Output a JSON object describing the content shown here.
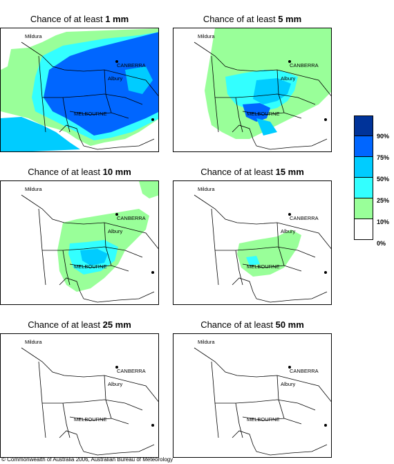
{
  "title_prefix": "Chance of at least ",
  "panels": [
    {
      "amount": "1 mm"
    },
    {
      "amount": "5 mm"
    },
    {
      "amount": "10 mm"
    },
    {
      "amount": "15 mm"
    },
    {
      "amount": "25 mm"
    },
    {
      "amount": "50 mm"
    }
  ],
  "cities": {
    "mildura": "Mildura",
    "canberra": "CANBERRA",
    "albury": "Albury",
    "melbourne": "MELBOURNE"
  },
  "legend": {
    "labels": [
      "90%",
      "75%",
      "50%",
      "25%",
      "10%",
      "0%"
    ],
    "colors": [
      "#003399",
      "#0066ff",
      "#00ccff",
      "#33ffff",
      "#99ff99",
      "#ffffff"
    ]
  },
  "copyright": "© Commonwealth of Australia 2006, Australian Bureau of Meteorology"
}
